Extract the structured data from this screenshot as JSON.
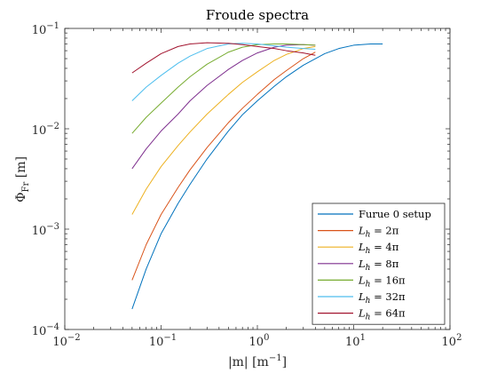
{
  "chart_data": {
    "type": "line",
    "title": "Froude spectra",
    "xscale": "log",
    "yscale": "log",
    "xlim": [
      0.01,
      100
    ],
    "ylim": [
      0.0001,
      0.1
    ],
    "xlabel": {
      "main": "|m|  [m",
      "sup": "−1",
      "tail": "]"
    },
    "ylabel": {
      "main": "Φ",
      "sub": "Fr",
      "tail": "  [m]"
    },
    "x_ticks": [
      {
        "value": 0.01,
        "base": "10",
        "exp": "−2"
      },
      {
        "value": 0.1,
        "base": "10",
        "exp": "−1"
      },
      {
        "value": 1,
        "base": "10",
        "exp": "0"
      },
      {
        "value": 10,
        "base": "10",
        "exp": "1"
      },
      {
        "value": 100,
        "base": "10",
        "exp": "2"
      }
    ],
    "y_ticks": [
      {
        "value": 0.0001,
        "base": "10",
        "exp": "−4"
      },
      {
        "value": 0.001,
        "base": "10",
        "exp": "−3"
      },
      {
        "value": 0.01,
        "base": "10",
        "exp": "−2"
      },
      {
        "value": 0.1,
        "base": "10",
        "exp": "−1"
      }
    ],
    "grid": false,
    "legend_position": "bottom-right",
    "series": [
      {
        "name": "Furue 0 setup",
        "color": "#0072BD",
        "x": [
          0.05,
          0.07,
          0.1,
          0.15,
          0.2,
          0.3,
          0.5,
          0.7,
          1,
          1.5,
          2,
          3,
          5,
          7,
          10,
          15,
          20
        ],
        "y": [
          0.00016,
          0.0004,
          0.0009,
          0.0018,
          0.0028,
          0.005,
          0.0095,
          0.0138,
          0.019,
          0.0265,
          0.033,
          0.043,
          0.056,
          0.063,
          0.068,
          0.07,
          0.07
        ]
      },
      {
        "name": "L_h = 2π",
        "label": {
          "main": "L",
          "sub": "h",
          "tail": " = 2π"
        },
        "color": "#D95319",
        "x": [
          0.05,
          0.07,
          0.1,
          0.15,
          0.2,
          0.3,
          0.5,
          0.7,
          1,
          1.5,
          2,
          3,
          4
        ],
        "y": [
          0.00031,
          0.0007,
          0.0014,
          0.0026,
          0.0039,
          0.0065,
          0.0115,
          0.016,
          0.022,
          0.031,
          0.038,
          0.05,
          0.058
        ]
      },
      {
        "name": "L_h = 4π",
        "label": {
          "main": "L",
          "sub": "h",
          "tail": " = 4π"
        },
        "color": "#EDB120",
        "x": [
          0.05,
          0.07,
          0.1,
          0.15,
          0.2,
          0.3,
          0.5,
          0.7,
          1,
          1.5,
          2,
          3,
          4
        ],
        "y": [
          0.0014,
          0.0025,
          0.0042,
          0.0068,
          0.0093,
          0.014,
          0.022,
          0.029,
          0.037,
          0.048,
          0.055,
          0.063,
          0.066
        ]
      },
      {
        "name": "L_h = 8π",
        "label": {
          "main": "L",
          "sub": "h",
          "tail": " = 8π"
        },
        "color": "#7E2F8E",
        "x": [
          0.05,
          0.07,
          0.1,
          0.15,
          0.2,
          0.3,
          0.5,
          0.7,
          1,
          1.5,
          2,
          3,
          4
        ],
        "y": [
          0.004,
          0.0063,
          0.0095,
          0.014,
          0.019,
          0.027,
          0.039,
          0.048,
          0.057,
          0.065,
          0.068,
          0.069,
          0.068
        ]
      },
      {
        "name": "L_h = 16π",
        "label": {
          "main": "L",
          "sub": "h",
          "tail": " = 16π"
        },
        "color": "#77AC30",
        "x": [
          0.05,
          0.07,
          0.1,
          0.15,
          0.2,
          0.3,
          0.5,
          0.7,
          1,
          1.5,
          2,
          3,
          4
        ],
        "y": [
          0.009,
          0.013,
          0.018,
          0.026,
          0.033,
          0.044,
          0.058,
          0.065,
          0.069,
          0.07,
          0.07,
          0.069,
          0.068
        ]
      },
      {
        "name": "L_h = 32π",
        "label": {
          "main": "L",
          "sub": "h",
          "tail": " = 32π"
        },
        "color": "#4DBEEE",
        "x": [
          0.05,
          0.07,
          0.1,
          0.15,
          0.2,
          0.3,
          0.5,
          0.7,
          1,
          1.5,
          2,
          3,
          4
        ],
        "y": [
          0.019,
          0.026,
          0.034,
          0.045,
          0.053,
          0.063,
          0.07,
          0.071,
          0.07,
          0.067,
          0.065,
          0.063,
          0.062
        ]
      },
      {
        "name": "L_h = 64π",
        "label": {
          "main": "L",
          "sub": "h",
          "tail": " = 64π"
        },
        "color": "#A2142F",
        "x": [
          0.05,
          0.07,
          0.1,
          0.15,
          0.2,
          0.3,
          0.5,
          0.7,
          1,
          1.5,
          2,
          3,
          4
        ],
        "y": [
          0.036,
          0.045,
          0.056,
          0.066,
          0.07,
          0.072,
          0.071,
          0.069,
          0.066,
          0.063,
          0.06,
          0.057,
          0.054
        ]
      }
    ]
  }
}
